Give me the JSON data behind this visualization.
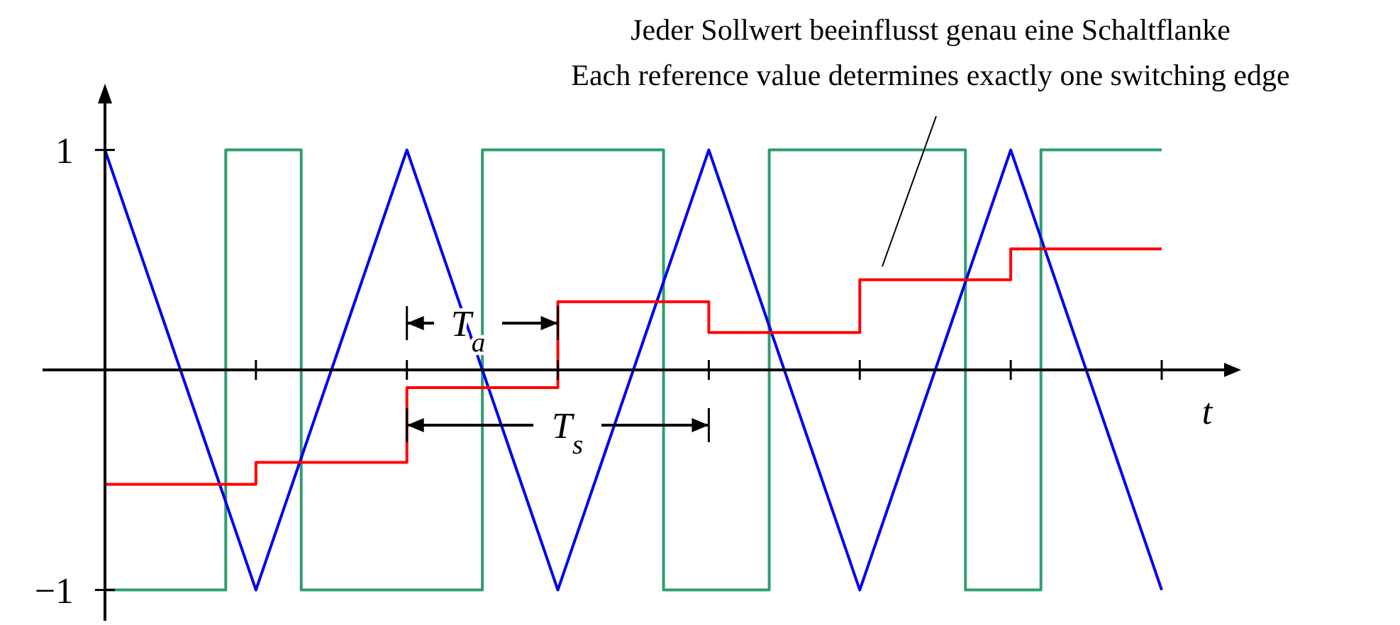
{
  "chart_data": {
    "type": "line",
    "xlabel": "t",
    "categories": [
      null,
      null,
      null,
      null,
      null,
      null,
      null,
      null,
      null,
      null,
      null,
      null,
      null,
      null,
      null,
      null,
      null,
      null,
      null,
      null,
      null,
      null,
      null,
      null,
      null,
      null,
      null,
      null,
      null,
      null,
      null,
      null,
      null,
      null,
      null,
      null,
      null,
      null,
      null,
      null,
      null,
      null,
      null,
      null,
      null,
      null,
      null,
      null,
      null,
      null,
      null,
      null,
      null,
      null,
      null,
      null,
      null,
      null,
      null,
      null,
      null,
      null,
      null,
      null,
      null,
      null,
      null,
      null,
      null,
      null,
      null
    ],
    "ylim": [
      -1.14,
      1.25
    ],
    "yticks": [
      {
        "value": -1,
        "label": "−1"
      },
      {
        "value": 1,
        "label": "1"
      }
    ],
    "tick_labels": "y",
    "series": [
      {
        "type": "step",
        "color": "#2e9e6e",
        "values": [
          -1,
          -1,
          -1,
          -1,
          -1,
          -1,
          -1,
          -1,
          1,
          1,
          1,
          1,
          1,
          -1,
          -1,
          -1,
          -1,
          -1,
          -1,
          -1,
          -1,
          -1,
          -1,
          -1,
          -1,
          1,
          1,
          1,
          1,
          1,
          1,
          1,
          1,
          1,
          1,
          1,
          1,
          -1,
          -1,
          -1,
          -1,
          -1,
          -1,
          -1,
          1,
          1,
          1,
          1,
          1,
          1,
          1,
          1,
          1,
          1,
          1,
          1,
          1,
          -1,
          -1,
          -1,
          -1,
          -1,
          1,
          1,
          1,
          1,
          1,
          1,
          1,
          1,
          1
        ]
      },
      {
        "type": "line",
        "color": "#0000ee",
        "values": [
          1,
          0.8,
          0.6,
          0.4,
          0.2,
          0,
          -0.2,
          -0.4,
          -0.6,
          -0.8,
          -1,
          -0.8,
          -0.6,
          -0.4,
          -0.2,
          0,
          0.2,
          0.4,
          0.6,
          0.8,
          1,
          0.8,
          0.6,
          0.4,
          0.2,
          0,
          -0.2,
          -0.4,
          -0.6,
          -0.8,
          -1,
          -0.8,
          -0.6,
          -0.4,
          -0.2,
          0,
          0.2,
          0.4,
          0.6,
          0.8,
          1,
          0.8,
          0.6,
          0.4,
          0.2,
          0,
          -0.2,
          -0.4,
          -0.6,
          -0.8,
          -1,
          -0.8,
          -0.6,
          -0.4,
          -0.2,
          0,
          0.2,
          0.4,
          0.6,
          0.8,
          1,
          0.8,
          0.6,
          0.4,
          0.2,
          0,
          -0.2,
          -0.4,
          -0.6,
          -0.8,
          -1
        ]
      },
      {
        "type": "step",
        "color": "#ff0000",
        "values": [
          -0.52,
          -0.52,
          -0.52,
          -0.52,
          -0.52,
          -0.52,
          -0.52,
          -0.52,
          -0.52,
          -0.52,
          -0.42,
          -0.42,
          -0.42,
          -0.42,
          -0.42,
          -0.42,
          -0.42,
          -0.42,
          -0.42,
          -0.42,
          -0.08,
          -0.08,
          -0.08,
          -0.08,
          -0.08,
          -0.08,
          -0.08,
          -0.08,
          -0.08,
          -0.08,
          0.31,
          0.31,
          0.31,
          0.31,
          0.31,
          0.31,
          0.31,
          0.31,
          0.31,
          0.31,
          0.17,
          0.17,
          0.17,
          0.17,
          0.17,
          0.17,
          0.17,
          0.17,
          0.17,
          0.17,
          0.41,
          0.41,
          0.41,
          0.41,
          0.41,
          0.41,
          0.41,
          0.41,
          0.41,
          0.41,
          0.55,
          0.55,
          0.55,
          0.55,
          0.55,
          0.55,
          0.55,
          0.55,
          0.55,
          0.55,
          0.55
        ]
      }
    ],
    "annotations": [
      "Jeder Sollwert beeinflusst genau eine Schaltflanke",
      "Each reference value determines exactly one switching edge",
      "T$_{a}$",
      "T$_{s}$"
    ]
  }
}
